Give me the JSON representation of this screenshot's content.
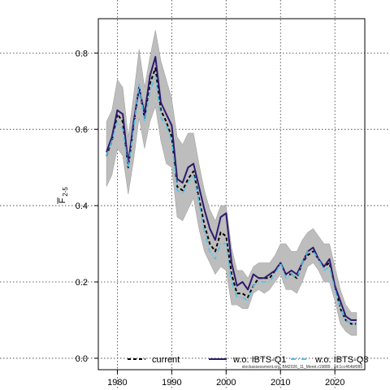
{
  "chart_data": {
    "type": "line",
    "ylabel_main": "F",
    "ylabel_sub": "2-5",
    "xlim": [
      1976.5,
      2025.5
    ],
    "ylim": [
      -0.03,
      0.89
    ],
    "x_ticks": [
      1980,
      1990,
      2000,
      2010,
      2020
    ],
    "y_ticks": [
      0.0,
      0.2,
      0.4,
      0.6,
      0.8
    ],
    "y_tick_labels": [
      "0.0",
      "0.2",
      "0.4",
      "0.6",
      "0.8"
    ],
    "grid": true,
    "legend_position": "bottom",
    "note": "stockassessment.org, BM2026_11_Meret.r19889 , git:1cc464bf089",
    "x": [
      1978,
      1979,
      1980,
      1981,
      1982,
      1983,
      1984,
      1985,
      1986,
      1987,
      1988,
      1989,
      1990,
      1991,
      1992,
      1993,
      1994,
      1995,
      1996,
      1997,
      1998,
      1999,
      2000,
      2001,
      2002,
      2003,
      2004,
      2005,
      2006,
      2007,
      2008,
      2009,
      2010,
      2011,
      2012,
      2013,
      2014,
      2015,
      2016,
      2017,
      2018,
      2019,
      2020,
      2021,
      2022,
      2023,
      2024
    ],
    "band": {
      "upper": [
        0.62,
        0.65,
        0.73,
        0.71,
        0.58,
        0.69,
        0.81,
        0.71,
        0.79,
        0.86,
        0.78,
        0.73,
        0.68,
        0.58,
        0.56,
        0.59,
        0.59,
        0.51,
        0.44,
        0.39,
        0.36,
        0.4,
        0.4,
        0.29,
        0.23,
        0.23,
        0.21,
        0.24,
        0.25,
        0.25,
        0.25,
        0.27,
        0.3,
        0.3,
        0.28,
        0.28,
        0.31,
        0.33,
        0.34,
        0.32,
        0.3,
        0.3,
        0.24,
        0.18,
        0.14,
        0.12,
        0.12
      ],
      "lower": [
        0.45,
        0.48,
        0.55,
        0.53,
        0.43,
        0.52,
        0.63,
        0.55,
        0.62,
        0.66,
        0.57,
        0.51,
        0.5,
        0.37,
        0.36,
        0.39,
        0.42,
        0.34,
        0.28,
        0.25,
        0.22,
        0.24,
        0.23,
        0.14,
        0.14,
        0.13,
        0.13,
        0.17,
        0.18,
        0.17,
        0.18,
        0.2,
        0.22,
        0.18,
        0.18,
        0.17,
        0.2,
        0.24,
        0.25,
        0.23,
        0.2,
        0.2,
        0.15,
        0.09,
        0.07,
        0.06,
        0.06
      ]
    },
    "series": [
      {
        "name": "current",
        "color": "#000000",
        "dash": "4 3",
        "values": [
          0.53,
          0.57,
          0.64,
          0.62,
          0.5,
          0.61,
          0.71,
          0.63,
          0.72,
          0.76,
          0.65,
          0.62,
          0.58,
          0.45,
          0.44,
          0.47,
          0.49,
          0.42,
          0.35,
          0.3,
          0.28,
          0.33,
          0.32,
          0.22,
          0.17,
          0.17,
          0.16,
          0.19,
          0.21,
          0.21,
          0.21,
          0.23,
          0.25,
          0.22,
          0.22,
          0.21,
          0.25,
          0.27,
          0.28,
          0.26,
          0.24,
          0.25,
          0.19,
          0.13,
          0.1,
          0.09,
          0.09
        ]
      },
      {
        "name": "w.o. IBTS-Q1",
        "color": "#2e1a6e",
        "dash": "",
        "values": [
          0.54,
          0.58,
          0.65,
          0.64,
          0.51,
          0.62,
          0.71,
          0.64,
          0.74,
          0.79,
          0.67,
          0.64,
          0.61,
          0.47,
          0.46,
          0.5,
          0.51,
          0.45,
          0.39,
          0.34,
          0.31,
          0.37,
          0.38,
          0.25,
          0.19,
          0.2,
          0.18,
          0.22,
          0.21,
          0.21,
          0.22,
          0.23,
          0.25,
          0.22,
          0.23,
          0.22,
          0.25,
          0.28,
          0.29,
          0.26,
          0.24,
          0.26,
          0.19,
          0.15,
          0.11,
          0.1,
          0.1
        ]
      },
      {
        "name": "w.o. IBTS-Q3",
        "color": "#4fc3e8",
        "dash": "6 3 1 3",
        "values": [
          0.53,
          0.57,
          0.62,
          0.6,
          0.5,
          0.6,
          0.72,
          0.62,
          0.7,
          0.74,
          0.63,
          0.61,
          0.57,
          0.44,
          0.43,
          0.46,
          0.48,
          0.41,
          0.33,
          0.28,
          0.26,
          0.3,
          0.3,
          0.2,
          0.16,
          0.16,
          0.15,
          0.19,
          0.2,
          0.2,
          0.2,
          0.22,
          0.25,
          0.21,
          0.22,
          0.21,
          0.25,
          0.28,
          0.28,
          0.26,
          0.23,
          0.24,
          0.18,
          0.13,
          0.1,
          0.09,
          0.09
        ]
      }
    ]
  }
}
